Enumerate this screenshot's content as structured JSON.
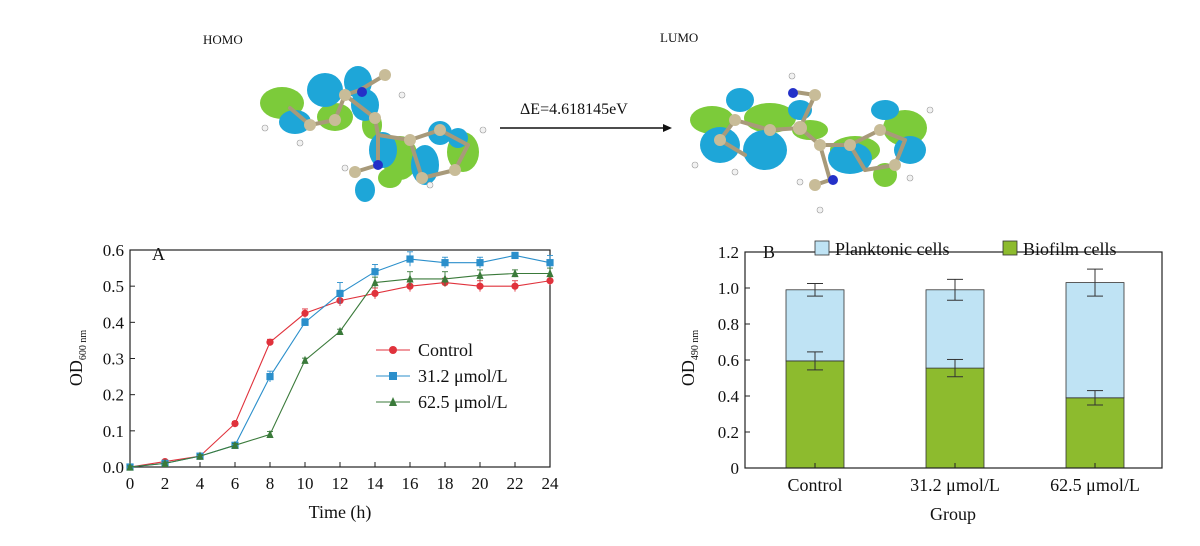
{
  "orbitals": {
    "homo_label": "HOMO",
    "lumo_label": "LUMO",
    "energy_gap": "ΔE=4.618145eV",
    "lobe_colors": {
      "blue": "#1ea6d8",
      "green": "#7ccb3a",
      "carbon": "#c8bc98",
      "nitrogen": "#2430c8",
      "hydrogen": "#f2f2f2"
    }
  },
  "chart_data": [
    {
      "panel": "A",
      "type": "line",
      "xlabel": "Time (h)",
      "ylabel_main": "OD",
      "ylabel_sub": "600 nm",
      "xlim": [
        0,
        24
      ],
      "ylim": [
        0,
        0.6
      ],
      "x_ticks": [
        "0",
        "2",
        "4",
        "6",
        "8",
        "10",
        "12",
        "14",
        "16",
        "18",
        "20",
        "22",
        "24"
      ],
      "y_ticks": [
        "0.0",
        "0.1",
        "0.2",
        "0.3",
        "0.4",
        "0.5",
        "0.6"
      ],
      "legend_position": "middle",
      "x": [
        0,
        2,
        4,
        6,
        8,
        10,
        12,
        14,
        16,
        18,
        20,
        22,
        24
      ],
      "series": [
        {
          "name": "Control",
          "color": "#e0323c",
          "marker": "circle",
          "values": [
            0.0,
            0.015,
            0.03,
            0.12,
            0.345,
            0.425,
            0.46,
            0.48,
            0.5,
            0.51,
            0.5,
            0.5,
            0.515
          ],
          "errors": [
            0.003,
            0.004,
            0.004,
            0.006,
            0.008,
            0.012,
            0.015,
            0.015,
            0.015,
            0.012,
            0.015,
            0.015,
            0.012
          ]
        },
        {
          "name": "31.2 μmol/L",
          "color": "#2b8fcb",
          "marker": "square",
          "values": [
            0.0,
            0.01,
            0.03,
            0.06,
            0.25,
            0.4,
            0.48,
            0.54,
            0.575,
            0.565,
            0.565,
            0.585,
            0.565
          ],
          "errors": [
            0.003,
            0.004,
            0.004,
            0.006,
            0.015,
            0.01,
            0.03,
            0.02,
            0.02,
            0.015,
            0.015,
            0.006,
            0.02
          ]
        },
        {
          "name": "62.5 μmol/L",
          "color": "#3a7a3a",
          "marker": "triangle",
          "values": [
            0.0,
            0.01,
            0.03,
            0.06,
            0.09,
            0.295,
            0.375,
            0.51,
            0.52,
            0.52,
            0.53,
            0.535,
            0.535
          ],
          "errors": [
            0.003,
            0.004,
            0.004,
            0.005,
            0.008,
            0.006,
            0.006,
            0.015,
            0.02,
            0.02,
            0.015,
            0.01,
            0.015
          ]
        }
      ]
    },
    {
      "panel": "B",
      "type": "bar",
      "stacked": true,
      "xlabel": "Group",
      "ylabel_main": "OD",
      "ylabel_sub": "490 nm",
      "categories": [
        "Control",
        "31.2 μmol/L",
        "62.5 μmol/L"
      ],
      "ylim": [
        0,
        1.2
      ],
      "y_ticks": [
        "0",
        "0.2",
        "0.4",
        "0.6",
        "0.8",
        "1.0",
        "1.2"
      ],
      "legend_position": "top",
      "series": [
        {
          "name": "Biofilm cells",
          "color": "#8dbb2e",
          "values": [
            0.595,
            0.555,
            0.39
          ],
          "errors": [
            0.05,
            0.048,
            0.04
          ]
        },
        {
          "name": "Planktonic cells",
          "color": "#bfe3f4",
          "values": [
            0.395,
            0.435,
            0.64
          ],
          "errors": [
            0.035,
            0.058,
            0.075
          ]
        }
      ]
    }
  ]
}
